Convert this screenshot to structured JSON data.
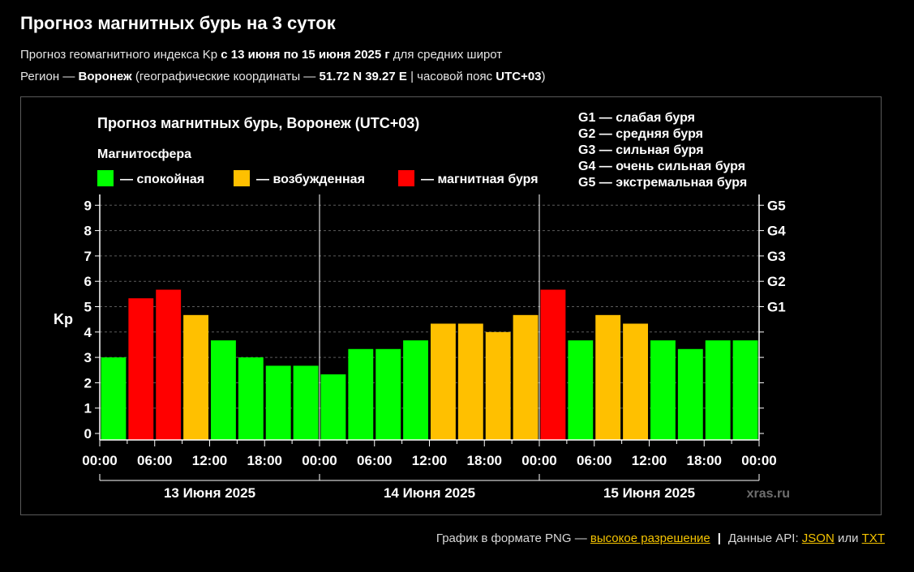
{
  "header": {
    "title": "Прогноз магнитных бурь на 3 суток",
    "line1_prefix": "Прогноз геомагнитного индекса Kp ",
    "line1_bold": "с 13 июня по 15 июня 2025 г",
    "line1_suffix": " для средних широт",
    "line2_prefix": "Регион — ",
    "line2_region": "Воронеж",
    "line2_mid": " (географические координаты — ",
    "line2_coords": "51.72 N 39.27 E",
    "line2_mid2": " | часовой пояс ",
    "line2_tz": "UTC+03",
    "line2_suffix": ")"
  },
  "chart_data": {
    "type": "bar",
    "title": "Прогноз магнитных бурь, Воронеж (UTC+03)",
    "ylabel": "Kp",
    "ylim": [
      0,
      9
    ],
    "yticks": [
      "0",
      "1",
      "2",
      "3",
      "4",
      "5",
      "6",
      "7",
      "8",
      "9"
    ],
    "right_axis_ticks": [
      {
        "value": 5,
        "label": "G1"
      },
      {
        "value": 6,
        "label": "G2"
      },
      {
        "value": 7,
        "label": "G3"
      },
      {
        "value": 8,
        "label": "G4"
      },
      {
        "value": 9,
        "label": "G5"
      }
    ],
    "xtick_labels": [
      "00:00",
      "06:00",
      "12:00",
      "18:00",
      "00:00",
      "06:00",
      "12:00",
      "18:00",
      "00:00",
      "06:00",
      "12:00",
      "18:00",
      "00:00"
    ],
    "days": [
      "13 Июня 2025",
      "14 Июня 2025",
      "15 Июня 2025"
    ],
    "values": [
      3.0,
      5.33,
      5.67,
      4.67,
      3.67,
      3.0,
      2.67,
      2.67,
      2.33,
      3.33,
      3.33,
      3.67,
      4.33,
      4.33,
      4.0,
      4.67,
      5.67,
      3.67,
      4.67,
      4.33,
      3.67,
      3.33,
      3.67,
      3.67
    ],
    "levels": [
      "calm",
      "storm",
      "storm",
      "excited",
      "calm",
      "calm",
      "calm",
      "calm",
      "calm",
      "calm",
      "calm",
      "calm",
      "excited",
      "excited",
      "excited",
      "excited",
      "storm",
      "calm",
      "excited",
      "excited",
      "calm",
      "calm",
      "calm",
      "calm"
    ],
    "legend_title": "Магнитосфера",
    "legend": [
      {
        "key": "calm",
        "label": "— спокойная",
        "color": "#00ff00"
      },
      {
        "key": "excited",
        "label": "— возбужденная",
        "color": "#ffc000"
      },
      {
        "key": "storm",
        "label": "— магнитная буря",
        "color": "#ff0000"
      }
    ],
    "g_scale": [
      "G1 — слабая буря",
      "G2 — средняя буря",
      "G3 — сильная буря",
      "G4 — очень сильная буря",
      "G5 — экстремальная буря"
    ],
    "watermark": "xras.ru",
    "grid": true
  },
  "footer": {
    "png_text": "График в формате PNG — ",
    "png_link": "высокое разрешение",
    "api_text": "Данные API: ",
    "json_link": "JSON",
    "or_text": " или ",
    "txt_link": "TXT"
  }
}
